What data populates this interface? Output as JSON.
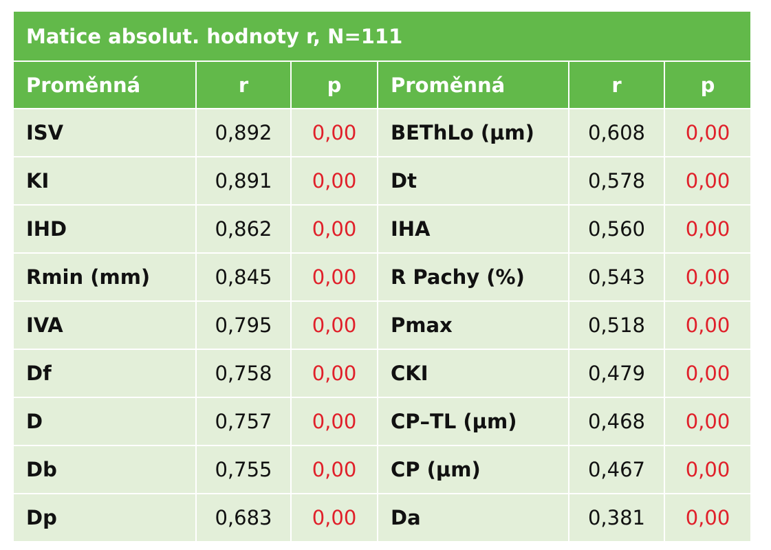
{
  "title": "Matice absolut. hodnoty r, N=111",
  "table": {
    "header": [
      "Proměnná",
      "r",
      "p",
      "Proměnná",
      "r",
      "p"
    ],
    "rows": [
      [
        "ISV",
        "0,892",
        "0,00",
        "BEThLo (µm)",
        "0,608",
        "0,00"
      ],
      [
        "KI",
        "0,891",
        "0,00",
        "Dt",
        "0,578",
        "0,00"
      ],
      [
        "IHD",
        "0,862",
        "0,00",
        "IHA",
        "0,560",
        "0,00"
      ],
      [
        "Rmin (mm)",
        "0,845",
        "0,00",
        "R Pachy (%)",
        "0,543",
        "0,00"
      ],
      [
        "IVA",
        "0,795",
        "0,00",
        "Pmax",
        "0,518",
        "0,00"
      ],
      [
        "Df",
        "0,758",
        "0,00",
        "CKI",
        "0,479",
        "0,00"
      ],
      [
        "D",
        "0,757",
        "0,00",
        "CP–TL (µm)",
        "0,468",
        "0,00"
      ],
      [
        "Db",
        "0,755",
        "0,00",
        "CP (µm)",
        "0,467",
        "0,00"
      ],
      [
        "Dp",
        "0,683",
        "0,00",
        "Da",
        "0,381",
        "0,00"
      ]
    ]
  }
}
